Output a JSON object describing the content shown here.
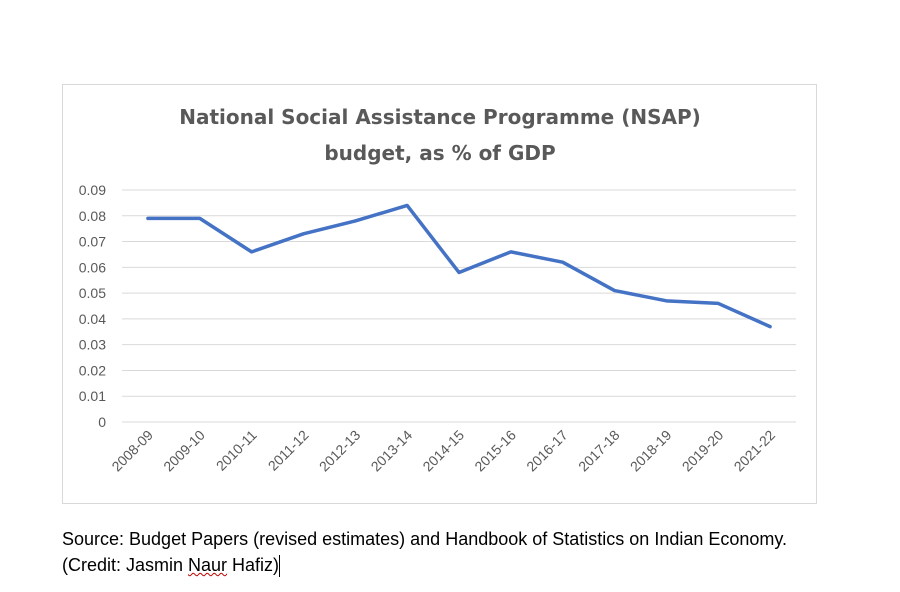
{
  "chart_data": {
    "type": "line",
    "title": "National Social Assistance Programme (NSAP) budget, as % of GDP",
    "title_lines": [
      "National Social Assistance Programme (NSAP)",
      "budget, as % of GDP"
    ],
    "xlabel": "",
    "ylabel": "",
    "categories": [
      "2008-09",
      "2009-10",
      "2010-11",
      "2011-12",
      "2012-13",
      "2013-14",
      "2014-15",
      "2015-16",
      "2016-17",
      "2017-18",
      "2018-19",
      "2019-20",
      "2021-22"
    ],
    "series": [
      {
        "name": "NSAP budget % of GDP",
        "color": "#4472c4",
        "values": [
          0.079,
          0.079,
          0.066,
          0.073,
          0.078,
          0.084,
          0.058,
          0.066,
          0.062,
          0.051,
          0.047,
          0.046,
          0.037
        ]
      }
    ],
    "yticks": [
      "0",
      "0.01",
      "0.02",
      "0.03",
      "0.04",
      "0.05",
      "0.06",
      "0.07",
      "0.08",
      "0.09"
    ],
    "ylim": [
      0,
      0.09
    ],
    "grid": true,
    "legend": "none"
  },
  "source": {
    "line1": "Source: Budget Papers (revised estimates) and Handbook of Statistics on Indian Economy.",
    "credit_prefix": "(Credit: Jasmin ",
    "credit_name": "Naur",
    "credit_suffix": " Hafiz)"
  }
}
